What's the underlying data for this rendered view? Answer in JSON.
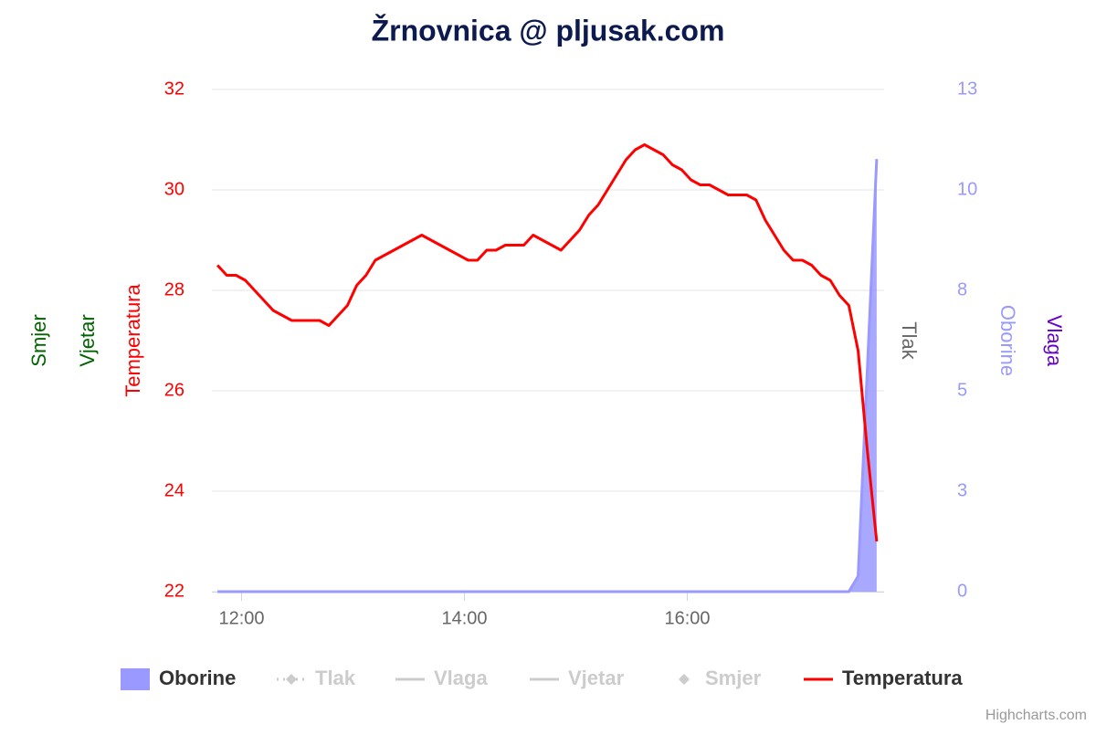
{
  "chart_data": {
    "type": "line",
    "title": "Žrnovnica @ pljusak.com",
    "credits": "Highcharts.com",
    "x": [
      "11:47",
      "11:52",
      "11:57",
      "12:02",
      "12:07",
      "12:12",
      "12:17",
      "12:22",
      "12:27",
      "12:32",
      "12:37",
      "12:42",
      "12:47",
      "12:52",
      "12:57",
      "13:02",
      "13:07",
      "13:12",
      "13:17",
      "13:22",
      "13:27",
      "13:32",
      "13:37",
      "13:42",
      "13:47",
      "13:52",
      "13:57",
      "14:02",
      "14:07",
      "14:12",
      "14:17",
      "14:22",
      "14:27",
      "14:32",
      "14:37",
      "14:42",
      "14:47",
      "14:52",
      "14:57",
      "15:02",
      "15:07",
      "15:12",
      "15:17",
      "15:22",
      "15:27",
      "15:32",
      "15:37",
      "15:42",
      "15:47",
      "15:52",
      "15:57",
      "16:02",
      "16:07",
      "16:12",
      "16:17",
      "16:22",
      "16:27",
      "16:32",
      "16:37",
      "16:42",
      "16:47",
      "16:52",
      "16:57",
      "17:02",
      "17:07",
      "17:12",
      "17:17",
      "17:22",
      "17:27",
      "17:32",
      "17:37",
      "17:42"
    ],
    "xlim": [
      "11:44",
      "17:46"
    ],
    "xticks": [
      "12:00",
      "14:00",
      "16:00"
    ],
    "ylim": [
      22,
      32
    ],
    "yticks": [
      22,
      24,
      26,
      28,
      30,
      32
    ],
    "y2lim": [
      0,
      13
    ],
    "y2ticks": [
      0,
      {
        "value": 2.6,
        "label": "3"
      },
      {
        "value": 5.2,
        "label": "5"
      },
      {
        "value": 7.8,
        "label": "8"
      },
      {
        "value": 10.4,
        "label": "10"
      },
      13
    ],
    "grid": true,
    "ylabel": "Temperatura",
    "y2label": "Oborine",
    "extra_axis_titles": [
      {
        "text": "Smjer",
        "color": "#006400",
        "side": "left"
      },
      {
        "text": "Vjetar",
        "color": "#006400",
        "side": "left"
      },
      {
        "text": "Tlak",
        "color": "#666666",
        "side": "right"
      },
      {
        "text": "Vlaga",
        "color": "#6600cc",
        "side": "right"
      }
    ],
    "series": [
      {
        "name": "Oborine",
        "type": "area",
        "color": "#9999ff",
        "axis": "y2",
        "visible": true,
        "values": [
          0,
          0,
          0,
          0,
          0,
          0,
          0,
          0,
          0,
          0,
          0,
          0,
          0,
          0,
          0,
          0,
          0,
          0,
          0,
          0,
          0,
          0,
          0,
          0,
          0,
          0,
          0,
          0,
          0,
          0,
          0,
          0,
          0,
          0,
          0,
          0,
          0,
          0,
          0,
          0,
          0,
          0,
          0,
          0,
          0,
          0,
          0,
          0,
          0,
          0,
          0,
          0,
          0,
          0,
          0,
          0,
          0,
          0,
          0,
          0,
          0,
          0,
          0,
          0,
          0,
          0,
          0,
          0,
          0,
          0.4,
          5.8,
          11.2
        ]
      },
      {
        "name": "Tlak",
        "type": "line",
        "color": "#cccccc",
        "visible": false
      },
      {
        "name": "Vlaga",
        "type": "line",
        "color": "#cccccc",
        "visible": false
      },
      {
        "name": "Vjetar",
        "type": "line",
        "color": "#cccccc",
        "visible": false
      },
      {
        "name": "Smjer",
        "type": "scatter",
        "color": "#cccccc",
        "visible": false
      },
      {
        "name": "Temperatura",
        "type": "line",
        "color": "#ff0000",
        "visible": true,
        "values": [
          28.5,
          28.3,
          28.3,
          28.2,
          28.0,
          27.8,
          27.6,
          27.5,
          27.4,
          27.4,
          27.4,
          27.4,
          27.3,
          27.5,
          27.7,
          28.1,
          28.3,
          28.6,
          28.7,
          28.8,
          28.9,
          29.0,
          29.1,
          29.0,
          28.9,
          28.8,
          28.7,
          28.6,
          28.6,
          28.8,
          28.8,
          28.9,
          28.9,
          28.9,
          29.1,
          29.0,
          28.9,
          28.8,
          29.0,
          29.2,
          29.5,
          29.7,
          30.0,
          30.3,
          30.6,
          30.8,
          30.9,
          30.8,
          30.7,
          30.5,
          30.4,
          30.2,
          30.1,
          30.1,
          30.0,
          29.9,
          29.9,
          29.9,
          29.8,
          29.4,
          29.1,
          28.8,
          28.6,
          28.6,
          28.5,
          28.3,
          28.2,
          27.9,
          27.7,
          26.8,
          24.8,
          23.0
        ]
      }
    ]
  }
}
